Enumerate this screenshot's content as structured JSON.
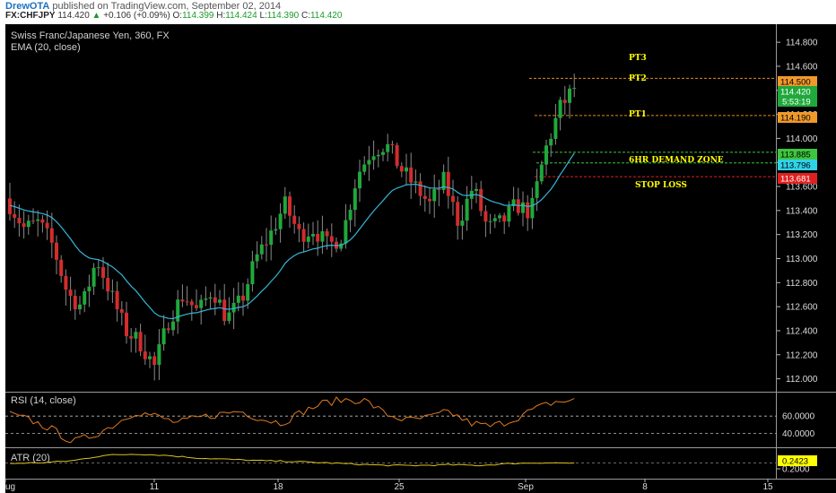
{
  "header": {
    "author": "DrewOTA",
    "published_text": "published on TradingView.com, September 02, 2014",
    "symbol": "FX:CHFJPY",
    "last": "114.420",
    "change_arrow": "▲",
    "change": "+0.106 (+0.09%)",
    "o_label": "O:",
    "o_value": "114.399",
    "h_label": "H:",
    "h_value": "114.424",
    "l_label": "L:",
    "l_value": "114.390",
    "c_label": "C:",
    "c_value": "114.420"
  },
  "main_legend": {
    "title": "Swiss Franc/Japanese Yen, 360, FX",
    "ema_label": "EMA (20, close)"
  },
  "rsi_legend": "RSI (14, close)",
  "atr_legend": "ATR (20)",
  "price_tags": {
    "pt2": "114.500",
    "last": "114.420",
    "countdown": "5:53:19",
    "pt1": "114.190",
    "zone_top": "113.885",
    "zone_bottom": "113.796",
    "stop": "113.681",
    "atr": "0.2423"
  },
  "annotations": [
    "PT3",
    "PT2",
    "PT1",
    "6HR DEMAND ZONE",
    "STOP LOSS"
  ],
  "colors": {
    "background": "#000000",
    "up_candle": "#1fa83b",
    "down_candle": "#d22c2c",
    "ema": "#35b6d8",
    "rsi": "#e07a1f",
    "atr": "#d9c21c",
    "annotation": "#ffff00",
    "pt_line": "#e08b1c",
    "zone_line": "#3ec63e",
    "stop_line": "#e02020"
  },
  "chart_data": [
    {
      "type": "candlestick",
      "title": "Swiss Franc/Japanese Yen, 360, FX",
      "y_ticks": [
        112.0,
        112.2,
        112.4,
        112.6,
        112.8,
        113.0,
        113.2,
        113.4,
        113.6,
        113.8,
        114.0,
        114.2,
        114.4,
        114.6,
        114.8
      ],
      "ylim": [
        111.9,
        114.95
      ],
      "x_tick_labels": [
        "ug",
        "11",
        "18",
        "25",
        "Sep",
        "8",
        "15"
      ],
      "levels": [
        {
          "label": "PT2",
          "value": 114.5
        },
        {
          "label": "PT1",
          "value": 114.19
        },
        {
          "label": "6HR DEMAND ZONE",
          "value": 113.885
        },
        {
          "label": "6HR DEMAND ZONE",
          "value": 113.796
        },
        {
          "label": "STOP LOSS",
          "value": 113.681
        }
      ],
      "ema_series_name": "EMA (20, close)",
      "anchors": [
        113.45,
        113.25,
        113.3,
        113.1,
        112.7,
        112.6,
        113.0,
        112.7,
        112.4,
        112.3,
        112.1,
        112.5,
        112.7,
        112.55,
        112.75,
        112.5,
        112.65,
        113.0,
        113.2,
        113.45,
        113.2,
        113.25,
        113.1,
        113.2,
        113.7,
        113.9,
        113.95,
        113.75,
        113.6,
        113.45,
        113.65,
        113.3,
        113.6,
        113.25,
        113.3,
        113.45,
        113.38,
        113.9,
        114.25,
        114.42
      ]
    },
    {
      "type": "line",
      "title": "RSI (14, close)",
      "y_ticks": [
        40.0,
        60.0
      ],
      "y_tick_labels": [
        "40.0000",
        "60.0000"
      ],
      "ylim": [
        25,
        85
      ],
      "anchors": [
        62,
        55,
        45,
        30,
        38,
        50,
        65,
        60,
        52,
        58,
        62,
        66,
        57,
        52,
        65,
        75,
        79,
        78,
        62,
        55,
        58,
        65,
        52,
        48,
        55,
        67,
        76,
        78
      ]
    },
    {
      "type": "line",
      "title": "ATR (20)",
      "y_ticks": [
        0.2
      ],
      "y_tick_labels": [
        "0.2000"
      ],
      "last_value": 0.2423,
      "ylim": [
        0.14,
        0.34
      ],
      "anchors": [
        0.24,
        0.245,
        0.26,
        0.3,
        0.31,
        0.3,
        0.28,
        0.27,
        0.26,
        0.255,
        0.245,
        0.235,
        0.225,
        0.225,
        0.23,
        0.225,
        0.24,
        0.245,
        0.2423
      ]
    }
  ]
}
